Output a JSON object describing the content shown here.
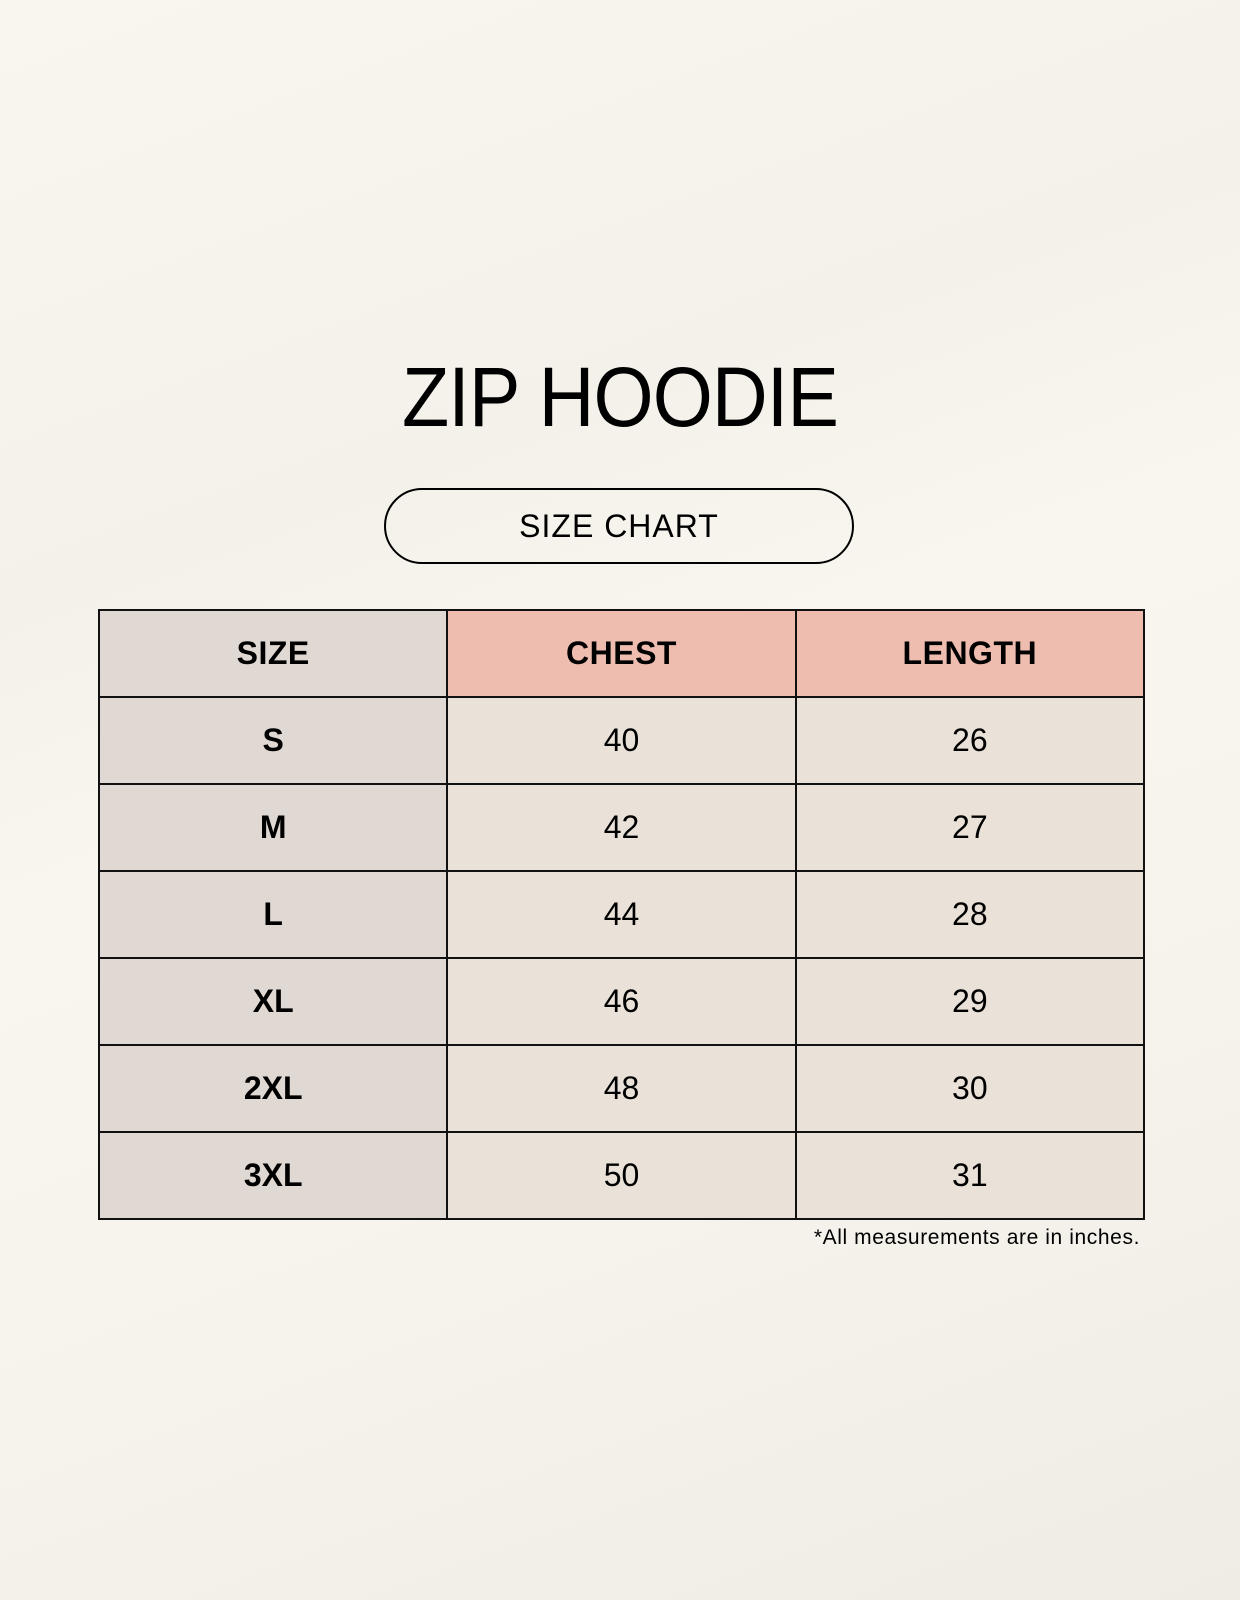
{
  "title": "ZIP HOODIE",
  "subtitle": "SIZE CHART",
  "colors": {
    "size_column": "#e0d8d3",
    "header_highlight": "#eebdb0",
    "cell": "#eae2d8",
    "background": "#f8f5ee"
  },
  "table": {
    "headers": [
      "SIZE",
      "CHEST",
      "LENGTH"
    ],
    "rows": [
      [
        "S",
        "40",
        "26"
      ],
      [
        "M",
        "42",
        "27"
      ],
      [
        "L",
        "44",
        "28"
      ],
      [
        "XL",
        "46",
        "29"
      ],
      [
        "2XL",
        "48",
        "30"
      ],
      [
        "3XL",
        "50",
        "31"
      ]
    ]
  },
  "footnote": "*All measurements are in inches."
}
